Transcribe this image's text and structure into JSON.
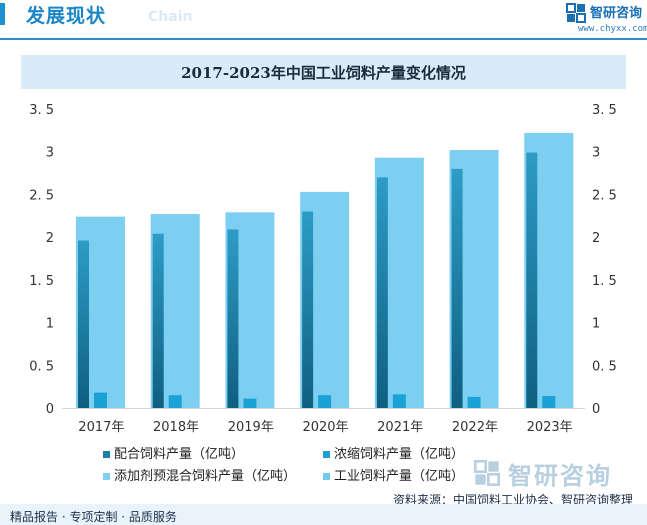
{
  "header": {
    "title": "发展现状",
    "subtitle": "Chain",
    "brand": "智研咨询",
    "url": "www.chyxx.com"
  },
  "chart_data": {
    "type": "bar",
    "title": "2017-2023年中国工业饲料产量变化情况",
    "categories": [
      "2017年",
      "2018年",
      "2019年",
      "2020年",
      "2021年",
      "2022年",
      "2023年"
    ],
    "series": [
      {
        "name": "配合饲料产量（亿吨）",
        "values": [
          1.96,
          2.04,
          2.09,
          2.3,
          2.7,
          2.8,
          2.99
        ],
        "color": "#1b7fa6"
      },
      {
        "name": "浓缩饲料产量（亿吨）",
        "values": [
          0.18,
          0.15,
          0.11,
          0.15,
          0.16,
          0.13,
          0.14
        ],
        "color": "#1aa2d6"
      },
      {
        "name": "添加剂预混合饲料产量（亿吨）",
        "values": [
          0.07,
          0.07,
          0.07,
          0.07,
          0.07,
          0.07,
          0.07
        ],
        "color": "#7fd0ef"
      },
      {
        "name": "工业饲料产量（亿吨）",
        "values": [
          2.24,
          2.27,
          2.29,
          2.53,
          2.93,
          3.02,
          3.22
        ],
        "color": "#6fcaef"
      }
    ],
    "ylim": [
      0,
      3.5
    ],
    "yticks": [
      "0",
      "0. 5",
      "1",
      "1. 5",
      "2",
      "2. 5",
      "3",
      "3. 5"
    ],
    "legend_position": "bottom"
  },
  "footer": {
    "source": "资料来源：中国饲料工业协会、智研咨询整理",
    "left": "精品报告 · 专项定制 · 品质服务",
    "watermark": "智研咨询"
  }
}
